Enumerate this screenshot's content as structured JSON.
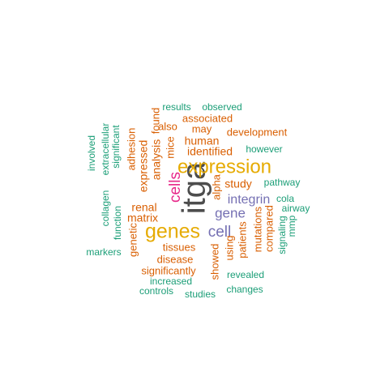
{
  "colors": {
    "dark_gray": "#4d4d4d",
    "pink": "#e7298a",
    "gold": "#e6ab02",
    "purple": "#7570b3",
    "orange": "#d95f02",
    "teal": "#1b9e77"
  },
  "words": [
    {
      "text": "itga",
      "color": "dark_gray",
      "weight": 1.0
    },
    {
      "text": "expression",
      "color": "gold",
      "weight": 0.6
    },
    {
      "text": "genes",
      "color": "gold",
      "weight": 0.6
    },
    {
      "text": "cells",
      "color": "pink",
      "weight": 0.5
    },
    {
      "text": "cell",
      "color": "purple",
      "weight": 0.4
    },
    {
      "text": "gene",
      "color": "purple",
      "weight": 0.4
    },
    {
      "text": "integrin",
      "color": "purple",
      "weight": 0.35
    },
    {
      "text": "human",
      "color": "orange",
      "weight": 0.3
    },
    {
      "text": "identified",
      "color": "orange",
      "weight": 0.3
    },
    {
      "text": "analysis",
      "color": "orange",
      "weight": 0.3
    },
    {
      "text": "expressed",
      "color": "orange",
      "weight": 0.3
    },
    {
      "text": "study",
      "color": "orange",
      "weight": 0.3
    },
    {
      "text": "renal",
      "color": "orange",
      "weight": 0.3
    },
    {
      "text": "matrix",
      "color": "orange",
      "weight": 0.3
    },
    {
      "text": "tissues",
      "color": "orange",
      "weight": 0.3
    },
    {
      "text": "disease",
      "color": "orange",
      "weight": 0.3
    },
    {
      "text": "significantly",
      "color": "orange",
      "weight": 0.3
    },
    {
      "text": "patients",
      "color": "orange",
      "weight": 0.3
    },
    {
      "text": "mutations",
      "color": "orange",
      "weight": 0.3
    },
    {
      "text": "compared",
      "color": "orange",
      "weight": 0.3
    },
    {
      "text": "using",
      "color": "orange",
      "weight": 0.3
    },
    {
      "text": "showed",
      "color": "orange",
      "weight": 0.3
    },
    {
      "text": "alpha",
      "color": "orange",
      "weight": 0.3
    },
    {
      "text": "mice",
      "color": "orange",
      "weight": 0.3
    },
    {
      "text": "found",
      "color": "orange",
      "weight": 0.3
    },
    {
      "text": "adhesion",
      "color": "orange",
      "weight": 0.3
    },
    {
      "text": "genetic",
      "color": "orange",
      "weight": 0.3
    },
    {
      "text": "associated",
      "color": "orange",
      "weight": 0.3
    },
    {
      "text": "may",
      "color": "orange",
      "weight": 0.3
    },
    {
      "text": "also",
      "color": "orange",
      "weight": 0.3
    },
    {
      "text": "development",
      "color": "orange",
      "weight": 0.3
    },
    {
      "text": "results",
      "color": "teal",
      "weight": 0.2
    },
    {
      "text": "observed",
      "color": "teal",
      "weight": 0.2
    },
    {
      "text": "however",
      "color": "teal",
      "weight": 0.2
    },
    {
      "text": "pathway",
      "color": "teal",
      "weight": 0.2
    },
    {
      "text": "cola",
      "color": "teal",
      "weight": 0.2
    },
    {
      "text": "airway",
      "color": "teal",
      "weight": 0.2
    },
    {
      "text": "mmp",
      "color": "teal",
      "weight": 0.2
    },
    {
      "text": "signaling",
      "color": "teal",
      "weight": 0.2
    },
    {
      "text": "revealed",
      "color": "teal",
      "weight": 0.2
    },
    {
      "text": "changes",
      "color": "teal",
      "weight": 0.2
    },
    {
      "text": "studies",
      "color": "teal",
      "weight": 0.2
    },
    {
      "text": "controls",
      "color": "teal",
      "weight": 0.2
    },
    {
      "text": "increased",
      "color": "teal",
      "weight": 0.2
    },
    {
      "text": "markers",
      "color": "teal",
      "weight": 0.2
    },
    {
      "text": "function",
      "color": "teal",
      "weight": 0.2
    },
    {
      "text": "collagen",
      "color": "teal",
      "weight": 0.2
    },
    {
      "text": "involved",
      "color": "teal",
      "weight": 0.2
    },
    {
      "text": "extracellular",
      "color": "teal",
      "weight": 0.2
    },
    {
      "text": "significant",
      "color": "teal",
      "weight": 0.2
    }
  ]
}
